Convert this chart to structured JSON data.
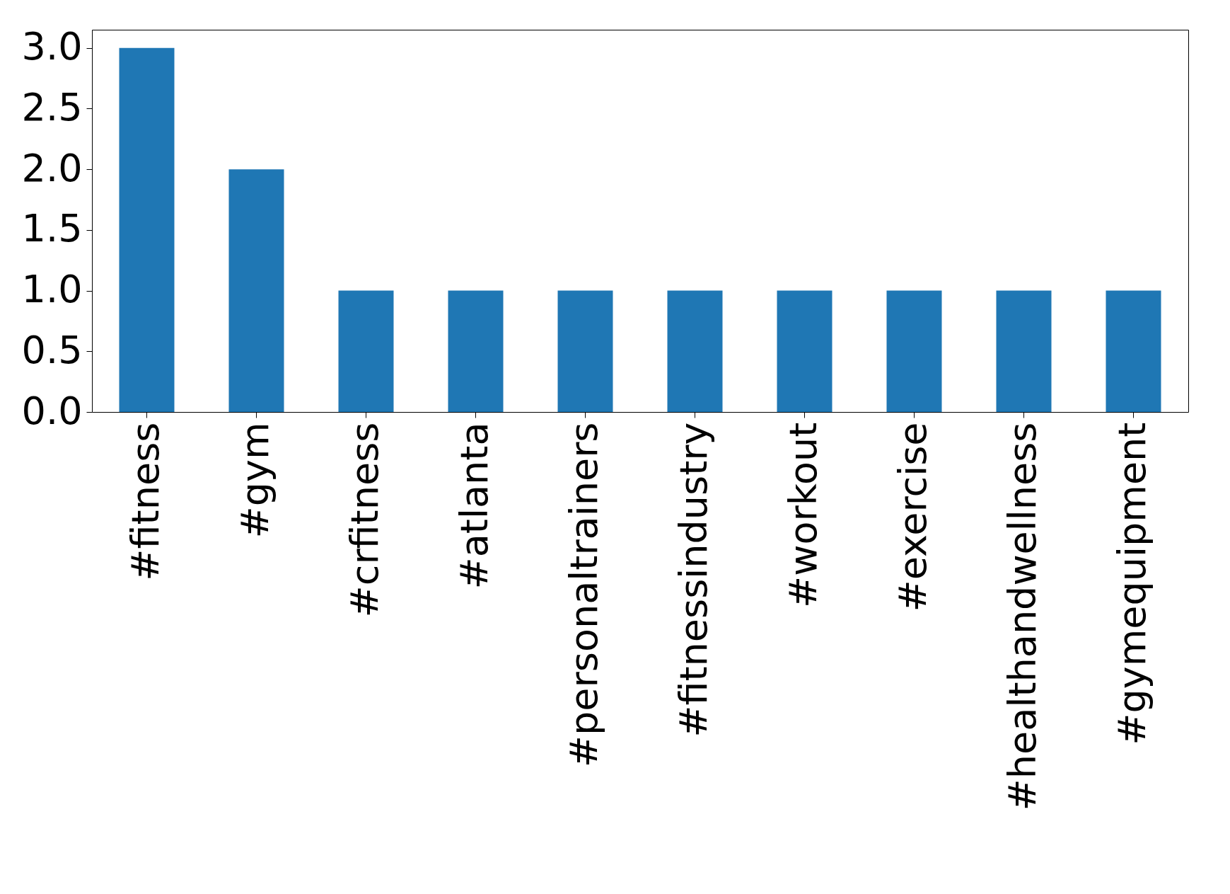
{
  "chart_data": {
    "type": "bar",
    "categories": [
      "#fitness",
      "#gym",
      "#crfitness",
      "#atlanta",
      "#personaltrainers",
      "#fitnessindustry",
      "#workout",
      "#exercise",
      "#healthandwellness",
      "#gymequipment"
    ],
    "values": [
      3,
      2,
      1,
      1,
      1,
      1,
      1,
      1,
      1,
      1
    ],
    "color": "#1f77b4",
    "ylim": [
      0,
      3.15
    ],
    "yticks": [
      {
        "value": 0,
        "label": "0.0"
      },
      {
        "value": 0.5,
        "label": "0.5"
      },
      {
        "value": 1,
        "label": "1.0"
      },
      {
        "value": 1.5,
        "label": "1.5"
      },
      {
        "value": 2,
        "label": "2.0"
      },
      {
        "value": 2.5,
        "label": "2.5"
      },
      {
        "value": 3,
        "label": "3.0"
      }
    ],
    "grid": false
  }
}
